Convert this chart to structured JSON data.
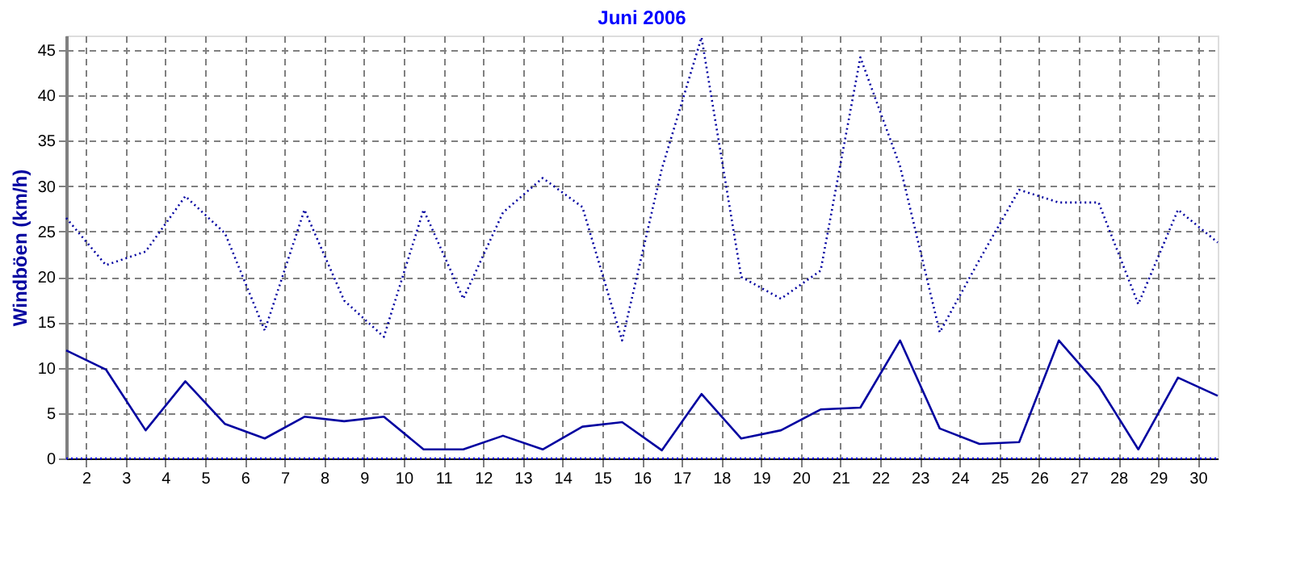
{
  "chart_data": {
    "type": "line",
    "title": "Juni 2006",
    "ylabel": "Windböen  (km/h)",
    "x": [
      1.5,
      2.5,
      3.5,
      4.5,
      5.5,
      6.5,
      7.5,
      8.5,
      9.5,
      10.5,
      11.5,
      12.5,
      13.5,
      14.5,
      15.5,
      16.5,
      17.5,
      18.5,
      19.5,
      20.5,
      21.5,
      22.5,
      23.5,
      24.5,
      25.5,
      26.5,
      27.5,
      28.5,
      29.5,
      30.5
    ],
    "series": [
      {
        "color": "#0000a0",
        "line_style": "dotted",
        "values": [
          26.5,
          21.3,
          22.8,
          28.9,
          24.8,
          14.1,
          27.4,
          17.4,
          13.4,
          27.4,
          17.6,
          27.1,
          30.9,
          27.7,
          13.0,
          31.9,
          46.4,
          20.0,
          17.6,
          20.7,
          44.2,
          32.2,
          13.9,
          21.9,
          29.6,
          28.2,
          28.2,
          17.0,
          27.4,
          23.8
        ]
      },
      {
        "color": "#0000a0",
        "line_style": "solid",
        "values": [
          11.9,
          9.8,
          3.1,
          8.5,
          3.8,
          2.2,
          4.6,
          4.1,
          4.6,
          1.0,
          1.0,
          2.5,
          1.0,
          3.5,
          4.0,
          0.9,
          7.1,
          2.2,
          3.1,
          5.4,
          5.6,
          13.0,
          3.3,
          1.6,
          1.8,
          13.0,
          8.0,
          1.0,
          8.9,
          6.9
        ]
      },
      {
        "color": "#0000ff",
        "line_style": "dotted",
        "values": [
          0,
          0,
          0,
          0,
          0,
          0,
          0,
          0,
          0,
          0,
          0,
          0,
          0,
          0,
          0,
          0,
          0,
          0,
          0,
          0,
          0,
          0,
          0,
          0,
          0,
          0,
          0,
          0,
          0,
          0
        ]
      }
    ],
    "xlim": [
      1.5,
      30.5
    ],
    "xticks": [
      2,
      3,
      4,
      5,
      6,
      7,
      8,
      9,
      10,
      11,
      12,
      13,
      14,
      15,
      16,
      17,
      18,
      19,
      20,
      21,
      22,
      23,
      24,
      25,
      26,
      27,
      28,
      29,
      30
    ],
    "ylim": [
      0,
      46.6
    ],
    "yticks": [
      0,
      5,
      10,
      15,
      20,
      25,
      30,
      35,
      40,
      45
    ],
    "grid": true,
    "marker": "none"
  }
}
